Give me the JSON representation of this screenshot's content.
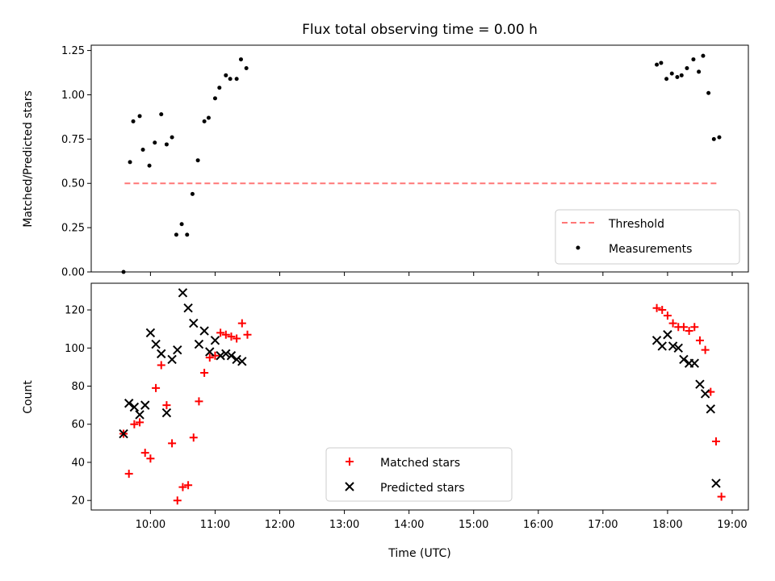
{
  "chart_data": [
    {
      "type": "scatter",
      "title": "Flux total observing time = 0.00 h",
      "xlabel": "",
      "ylabel": "Matched/Predicted stars",
      "ylim": [
        0,
        1.28
      ],
      "yticks": [
        "0.00",
        "0.25",
        "0.50",
        "0.75",
        "1.00",
        "1.25"
      ],
      "ytick_values": [
        0,
        0.25,
        0.5,
        0.75,
        1.0,
        1.25
      ],
      "legend_position": "lower right",
      "threshold": {
        "name": "Threshold",
        "value": 0.5,
        "x_start": "09:36",
        "x_end": "18:48",
        "color": "#ff7777"
      },
      "series": [
        {
          "name": "Measurements",
          "color": "#000000",
          "points": [
            [
              "09:35",
              0.0
            ],
            [
              "09:41",
              0.62
            ],
            [
              "09:44",
              0.85
            ],
            [
              "09:50",
              0.88
            ],
            [
              "09:53",
              0.69
            ],
            [
              "09:59",
              0.6
            ],
            [
              "10:04",
              0.73
            ],
            [
              "10:10",
              0.89
            ],
            [
              "10:15",
              0.72
            ],
            [
              "10:20",
              0.76
            ],
            [
              "10:24",
              0.21
            ],
            [
              "10:29",
              0.27
            ],
            [
              "10:34",
              0.21
            ],
            [
              "10:39",
              0.44
            ],
            [
              "10:44",
              0.63
            ],
            [
              "10:50",
              0.85
            ],
            [
              "10:54",
              0.87
            ],
            [
              "11:00",
              0.98
            ],
            [
              "11:04",
              1.04
            ],
            [
              "11:10",
              1.11
            ],
            [
              "11:14",
              1.09
            ],
            [
              "11:20",
              1.09
            ],
            [
              "11:24",
              1.2
            ],
            [
              "11:29",
              1.15
            ],
            [
              "17:50",
              1.17
            ],
            [
              "17:54",
              1.18
            ],
            [
              "17:59",
              1.09
            ],
            [
              "18:04",
              1.12
            ],
            [
              "18:09",
              1.1
            ],
            [
              "18:13",
              1.11
            ],
            [
              "18:18",
              1.15
            ],
            [
              "18:24",
              1.2
            ],
            [
              "18:29",
              1.13
            ],
            [
              "18:33",
              1.22
            ],
            [
              "18:38",
              1.01
            ],
            [
              "18:43",
              0.75
            ],
            [
              "18:48",
              0.76
            ]
          ]
        }
      ]
    },
    {
      "type": "scatter",
      "title": "",
      "xlabel": "Time (UTC)",
      "ylabel": "Count",
      "xlim": [
        "09:05",
        "19:15"
      ],
      "xticks": [
        "10:00",
        "11:00",
        "12:00",
        "13:00",
        "14:00",
        "15:00",
        "16:00",
        "17:00",
        "18:00",
        "19:00"
      ],
      "ylim": [
        15,
        134
      ],
      "yticks": [
        "20",
        "40",
        "60",
        "80",
        "100",
        "120"
      ],
      "ytick_values": [
        20,
        40,
        60,
        80,
        100,
        120
      ],
      "legend_position": "lower center",
      "series": [
        {
          "name": "Matched stars",
          "marker": "plus",
          "color": "#ff0000",
          "points": [
            [
              "09:35",
              55
            ],
            [
              "09:40",
              34
            ],
            [
              "09:45",
              60
            ],
            [
              "09:50",
              61
            ],
            [
              "09:55",
              45
            ],
            [
              "10:00",
              42
            ],
            [
              "10:05",
              79
            ],
            [
              "10:10",
              91
            ],
            [
              "10:15",
              70
            ],
            [
              "10:20",
              50
            ],
            [
              "10:25",
              20
            ],
            [
              "10:30",
              27
            ],
            [
              "10:35",
              28
            ],
            [
              "10:40",
              53
            ],
            [
              "10:45",
              72
            ],
            [
              "10:50",
              87
            ],
            [
              "10:55",
              95
            ],
            [
              "11:00",
              96
            ],
            [
              "11:05",
              108
            ],
            [
              "11:10",
              107
            ],
            [
              "11:15",
              106
            ],
            [
              "11:20",
              105
            ],
            [
              "11:25",
              113
            ],
            [
              "11:30",
              107
            ],
            [
              "17:50",
              121
            ],
            [
              "17:55",
              120
            ],
            [
              "18:00",
              117
            ],
            [
              "18:05",
              113
            ],
            [
              "18:10",
              111
            ],
            [
              "18:15",
              111
            ],
            [
              "18:20",
              109
            ],
            [
              "18:25",
              111
            ],
            [
              "18:30",
              104
            ],
            [
              "18:35",
              99
            ],
            [
              "18:40",
              77
            ],
            [
              "18:45",
              51
            ],
            [
              "18:50",
              22
            ]
          ]
        },
        {
          "name": "Predicted stars",
          "marker": "x",
          "color": "#000000",
          "points": [
            [
              "09:35",
              55
            ],
            [
              "09:40",
              71
            ],
            [
              "09:45",
              69
            ],
            [
              "09:50",
              65
            ],
            [
              "09:55",
              70
            ],
            [
              "10:00",
              108
            ],
            [
              "10:05",
              102
            ],
            [
              "10:10",
              97
            ],
            [
              "10:15",
              66
            ],
            [
              "10:20",
              94
            ],
            [
              "10:25",
              99
            ],
            [
              "10:30",
              129
            ],
            [
              "10:35",
              121
            ],
            [
              "10:40",
              113
            ],
            [
              "10:45",
              102
            ],
            [
              "10:50",
              109
            ],
            [
              "10:55",
              98
            ],
            [
              "11:00",
              104
            ],
            [
              "11:05",
              96
            ],
            [
              "11:10",
              97
            ],
            [
              "11:15",
              96
            ],
            [
              "11:20",
              94
            ],
            [
              "11:25",
              93
            ],
            [
              "17:50",
              104
            ],
            [
              "17:55",
              101
            ],
            [
              "18:00",
              107
            ],
            [
              "18:05",
              101
            ],
            [
              "18:10",
              100
            ],
            [
              "18:15",
              94
            ],
            [
              "18:20",
              92
            ],
            [
              "18:25",
              92
            ],
            [
              "18:30",
              81
            ],
            [
              "18:35",
              76
            ],
            [
              "18:40",
              68
            ],
            [
              "18:45",
              29
            ]
          ]
        }
      ]
    }
  ]
}
